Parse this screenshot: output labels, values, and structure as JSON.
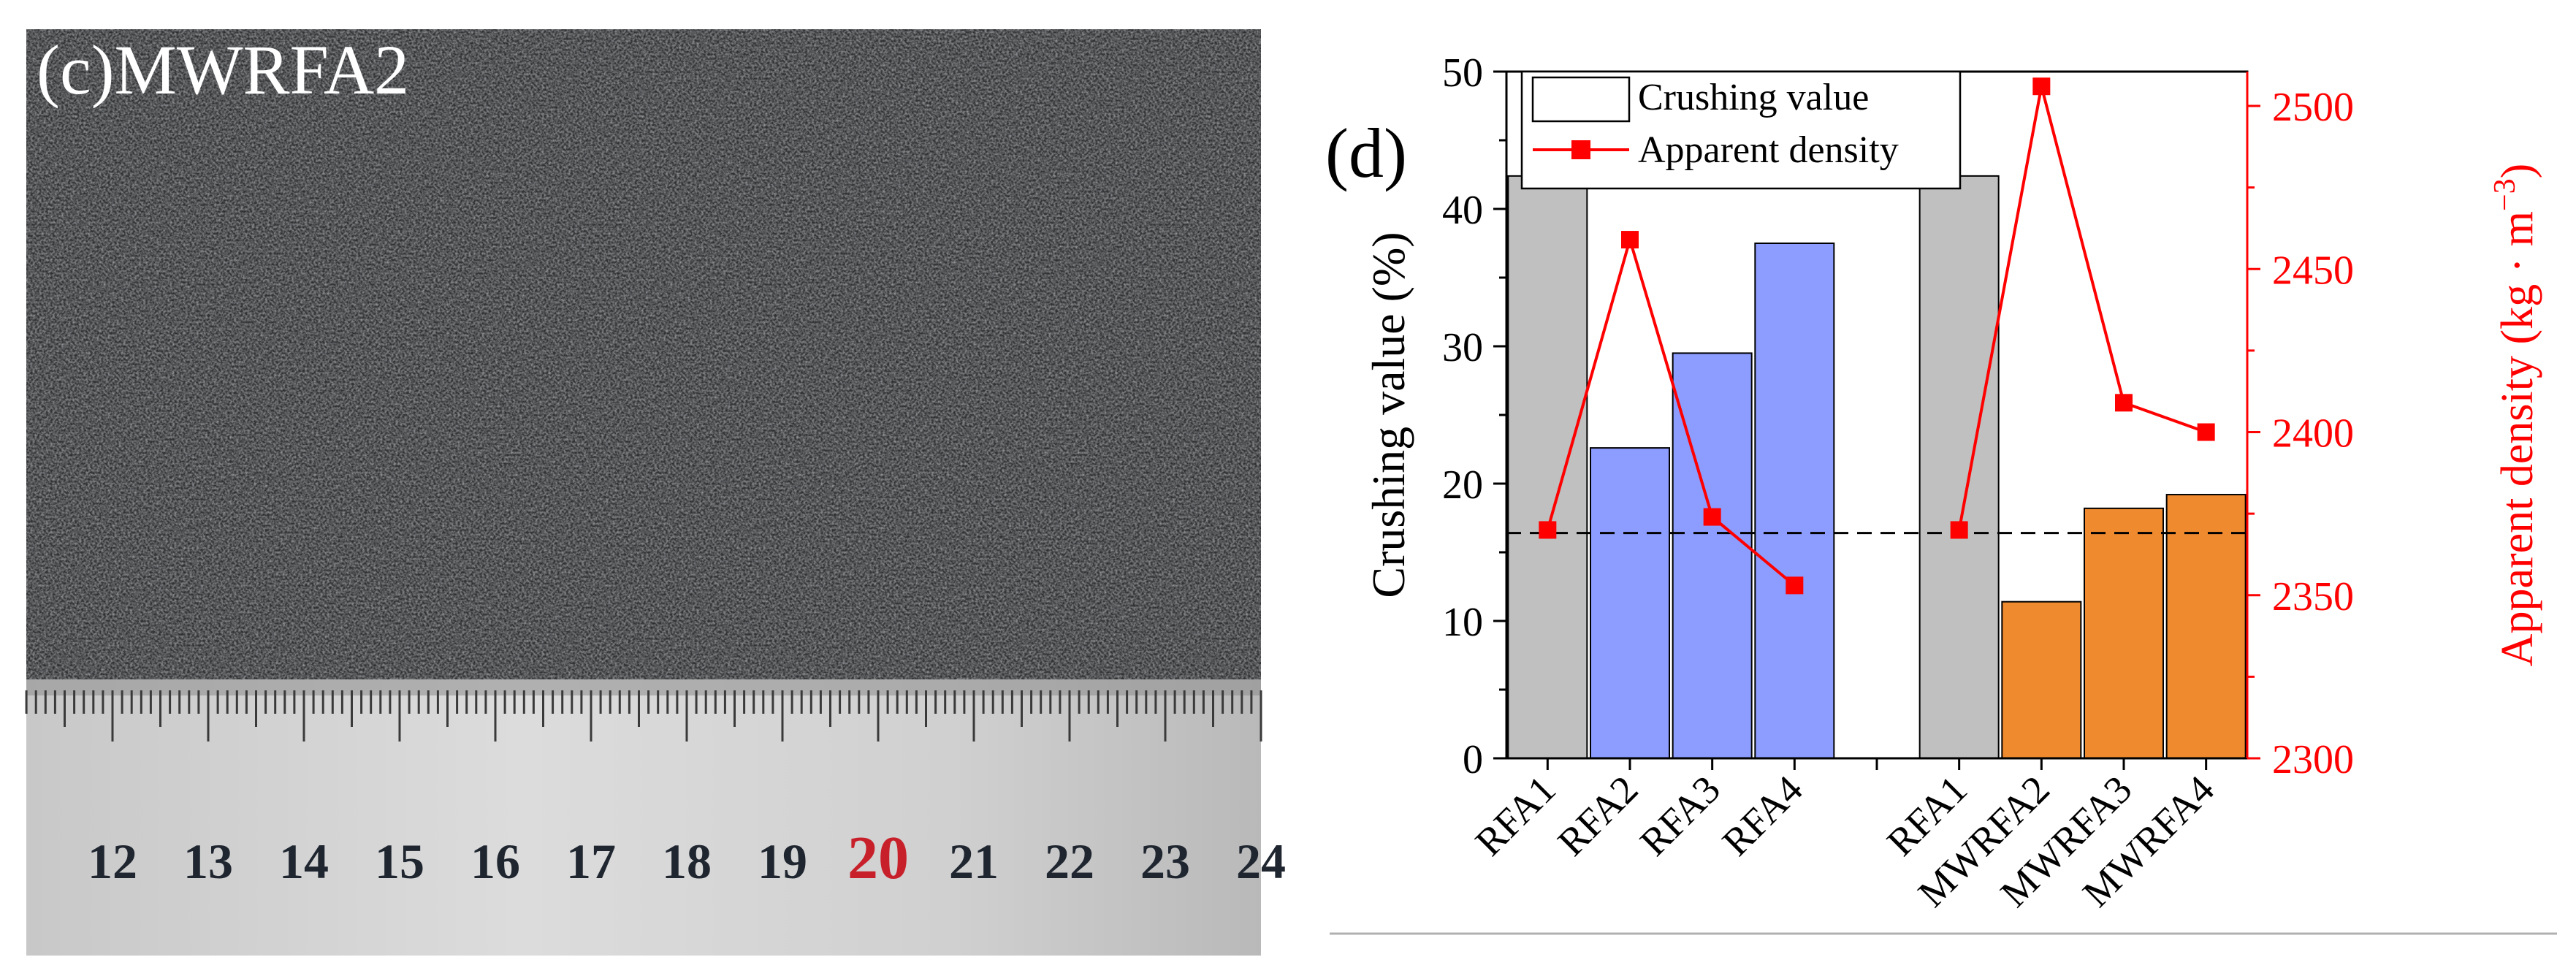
{
  "photo": {
    "label": "(c)MWRFA2",
    "ruler_numbers": [
      "12",
      "13",
      "14",
      "15",
      "16",
      "17",
      "18",
      "19",
      "20",
      "21",
      "22",
      "23",
      "24"
    ],
    "ruler_highlight": "20",
    "highlight_color": "#c8202a"
  },
  "chart_data": {
    "type": "bar",
    "panel_label": "(d)",
    "categories": [
      "RFA1",
      "RFA2",
      "RFA3",
      "RFA4",
      "",
      "RFA1",
      "MWRFA2",
      "MWRFA3",
      "MWRFA4"
    ],
    "series": [
      {
        "name": "Crushing value",
        "axis": "left",
        "values": [
          42.4,
          22.6,
          29.5,
          37.5,
          null,
          42.4,
          11.4,
          18.2,
          19.2
        ],
        "colors": [
          "#c0c0c0",
          "#8c9cff",
          "#8c9cff",
          "#8c9cff",
          null,
          "#c0c0c0",
          "#f08a2e",
          "#f08a2e",
          "#f08a2e"
        ]
      },
      {
        "name": "Apparent density",
        "axis": "right",
        "type": "line",
        "color": "#ff0000",
        "segments": [
          {
            "categories": [
              "RFA1",
              "RFA2",
              "RFA3",
              "RFA4"
            ],
            "values": [
              2370,
              2459,
              2374,
              2353
            ]
          },
          {
            "categories": [
              "RFA1",
              "MWRFA2",
              "MWRFA3",
              "MWRFA4"
            ],
            "values": [
              2370,
              2506,
              2409,
              2400
            ]
          }
        ]
      }
    ],
    "ylabel_left": "Crushing value (%)",
    "ylabel_right": "Apparent density (kg · m",
    "ylabel_right_sup": "−3",
    "ylabel_right_close": ")",
    "ylim_left": [
      0,
      50
    ],
    "yticks_left": [
      "0",
      "10",
      "20",
      "30",
      "40",
      "50"
    ],
    "ylim_right": [
      2300,
      2500
    ],
    "yticks_right": [
      "2300",
      "2350",
      "2400",
      "2450",
      "2500"
    ],
    "reference_line_left": 16.4,
    "legend": {
      "position": "top-left",
      "entries": [
        "Crushing value",
        "Apparent density"
      ]
    },
    "right_axis_color": "#ff0000"
  }
}
